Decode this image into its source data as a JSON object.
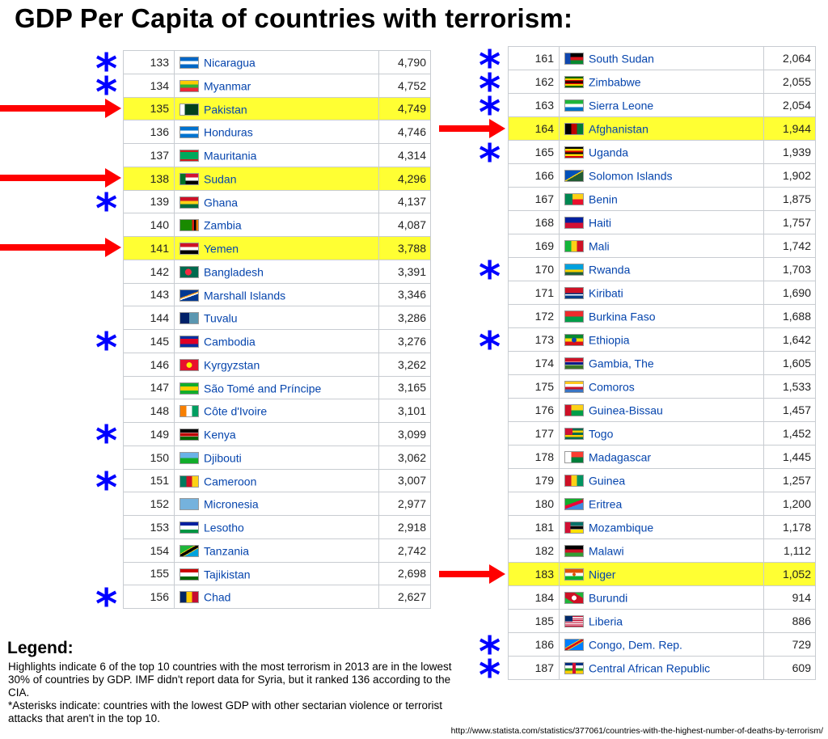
{
  "title": "GDP Per Capita of countries with terrorism:",
  "left_table": [
    {
      "rank": "133",
      "country": "Nicaragua",
      "value": "4,790",
      "flag": "nicaragua-flag-icon",
      "flag_style": "linear-gradient(#0067c6 33%,#fff 33% 67%,#0067c6 67%)",
      "highlight": false,
      "star": true,
      "arrow": false
    },
    {
      "rank": "134",
      "country": "Myanmar",
      "value": "4,752",
      "flag": "myanmar-flag-icon",
      "flag_style": "linear-gradient(#fecb00 33%,#34b233 33% 67%,#ea2839 67%)",
      "highlight": false,
      "star": true,
      "arrow": false
    },
    {
      "rank": "135",
      "country": "Pakistan",
      "value": "4,749",
      "flag": "pakistan-flag-icon",
      "flag_style": "linear-gradient(90deg,#fff 25%,#01411c 25%)",
      "highlight": true,
      "star": false,
      "arrow": true
    },
    {
      "rank": "136",
      "country": "Honduras",
      "value": "4,746",
      "flag": "honduras-flag-icon",
      "flag_style": "linear-gradient(#0073cf 33%,#fff 33% 67%,#0073cf 67%)",
      "highlight": false,
      "star": false,
      "arrow": false
    },
    {
      "rank": "137",
      "country": "Mauritania",
      "value": "4,314",
      "flag": "mauritania-flag-icon",
      "flag_style": "linear-gradient(#d01c1f 15%,#00a95c 15% 85%,#d01c1f 85%)",
      "highlight": false,
      "star": false,
      "arrow": false
    },
    {
      "rank": "138",
      "country": "Sudan",
      "value": "4,296",
      "flag": "sudan-flag-icon",
      "flag_style": "linear-gradient(90deg,#007229 30%,transparent 30%),linear-gradient(#d21034 33%,#fff 33% 67%,#000 67%)",
      "highlight": true,
      "star": false,
      "arrow": true
    },
    {
      "rank": "139",
      "country": "Ghana",
      "value": "4,137",
      "flag": "ghana-flag-icon",
      "flag_style": "linear-gradient(#ce1126 33%,#fcd116 33% 67%,#006b3f 67%)",
      "highlight": false,
      "star": true,
      "arrow": false
    },
    {
      "rank": "140",
      "country": "Zambia",
      "value": "4,087",
      "flag": "zambia-flag-icon",
      "flag_style": "linear-gradient(90deg,#198a00 65%,#de2010 65% 77%,#000 77% 88%,#ef7d00 88%)",
      "highlight": false,
      "star": false,
      "arrow": false
    },
    {
      "rank": "141",
      "country": "Yemen",
      "value": "3,788",
      "flag": "yemen-flag-icon",
      "flag_style": "linear-gradient(#ce1126 33%,#fff 33% 67%,#000 67%)",
      "highlight": true,
      "star": false,
      "arrow": true
    },
    {
      "rank": "142",
      "country": "Bangladesh",
      "value": "3,391",
      "flag": "bangladesh-flag-icon",
      "flag_style": "radial-gradient(circle at 45% 50%,#f42a41 28%,#006a4e 30%)",
      "highlight": false,
      "star": false,
      "arrow": false
    },
    {
      "rank": "143",
      "country": "Marshall Islands",
      "value": "3,346",
      "flag": "marshall-islands-flag-icon",
      "flag_style": "linear-gradient(160deg,#003893 45%,#ff9e1b 45% 52%,#fff 52% 59%,#003893 59%)",
      "highlight": false,
      "star": false,
      "arrow": false
    },
    {
      "rank": "144",
      "country": "Tuvalu",
      "value": "3,286",
      "flag": "tuvalu-flag-icon",
      "flag_style": "linear-gradient(90deg,#012169 50%,#5b97b1 50%)",
      "highlight": false,
      "star": false,
      "arrow": false
    },
    {
      "rank": "145",
      "country": "Cambodia",
      "value": "3,276",
      "flag": "cambodia-flag-icon",
      "flag_style": "linear-gradient(#032ea1 25%,#e00025 25% 75%,#032ea1 75%)",
      "highlight": false,
      "star": true,
      "arrow": false
    },
    {
      "rank": "146",
      "country": "Kyrgyzstan",
      "value": "3,262",
      "flag": "kyrgyzstan-flag-icon",
      "flag_style": "radial-gradient(circle,#ffef00 25%,#e8112d 28%)",
      "highlight": false,
      "star": false,
      "arrow": false
    },
    {
      "rank": "147",
      "country": "São Tomé and Príncipe",
      "value": "3,165",
      "flag": "sao-tome-flag-icon",
      "flag_style": "linear-gradient(#12ad2b 30%,#ffce00 30% 70%,#12ad2b 70%)",
      "highlight": false,
      "star": false,
      "arrow": false
    },
    {
      "rank": "148",
      "country": "Côte d'Ivoire",
      "value": "3,101",
      "flag": "cote-divoire-flag-icon",
      "flag_style": "linear-gradient(90deg,#f77f00 33%,#fff 33% 67%,#009e60 67%)",
      "highlight": false,
      "star": false,
      "arrow": false
    },
    {
      "rank": "149",
      "country": "Kenya",
      "value": "3,099",
      "flag": "kenya-flag-icon",
      "flag_style": "linear-gradient(#000 30%,#fff 30% 35%,#bb0000 35% 65%,#fff 65% 70%,#006600 70%)",
      "highlight": false,
      "star": true,
      "arrow": false
    },
    {
      "rank": "150",
      "country": "Djibouti",
      "value": "3,062",
      "flag": "djibouti-flag-icon",
      "flag_style": "linear-gradient(#6ab2e7 50%,#12ad2b 50%)",
      "highlight": false,
      "star": false,
      "arrow": false
    },
    {
      "rank": "151",
      "country": "Cameroon",
      "value": "3,007",
      "flag": "cameroon-flag-icon",
      "flag_style": "linear-gradient(90deg,#007a5e 33%,#ce1126 33% 67%,#fcd116 67%)",
      "highlight": false,
      "star": true,
      "arrow": false
    },
    {
      "rank": "152",
      "country": "Micronesia",
      "value": "2,977",
      "flag": "micronesia-flag-icon",
      "flag_style": "linear-gradient(#75b2dd,#75b2dd)",
      "highlight": false,
      "star": false,
      "arrow": false
    },
    {
      "rank": "153",
      "country": "Lesotho",
      "value": "2,918",
      "flag": "lesotho-flag-icon",
      "flag_style": "linear-gradient(#00209f 30%,#fff 30% 70%,#009543 70%)",
      "highlight": false,
      "star": false,
      "arrow": false
    },
    {
      "rank": "154",
      "country": "Tanzania",
      "value": "2,742",
      "flag": "tanzania-flag-icon",
      "flag_style": "linear-gradient(150deg,#1eb53a 38%,#fcd116 38% 42%,#000 42% 58%,#fcd116 58% 62%,#00a3dd 62%)",
      "highlight": false,
      "star": false,
      "arrow": false
    },
    {
      "rank": "155",
      "country": "Tajikistan",
      "value": "2,698",
      "flag": "tajikistan-flag-icon",
      "flag_style": "linear-gradient(#cc0000 30%,#fff 30% 70%,#006600 70%)",
      "highlight": false,
      "star": false,
      "arrow": false
    },
    {
      "rank": "156",
      "country": "Chad",
      "value": "2,627",
      "flag": "chad-flag-icon",
      "flag_style": "linear-gradient(90deg,#002664 33%,#fecb00 33% 67%,#c60c30 67%)",
      "highlight": false,
      "star": true,
      "arrow": false
    }
  ],
  "right_table": [
    {
      "rank": "161",
      "country": "South Sudan",
      "value": "2,064",
      "flag": "south-sudan-flag-icon",
      "flag_style": "linear-gradient(90deg,#0f47af 30%,transparent 30%),linear-gradient(#000 33%,#da121a 33% 67%,#078930 67%)",
      "highlight": false,
      "star": true,
      "arrow": false
    },
    {
      "rank": "162",
      "country": "Zimbabwe",
      "value": "2,055",
      "flag": "zimbabwe-flag-icon",
      "flag_style": "linear-gradient(#006400 15%,#ffd200 15% 30%,#d40000 30% 43%,#000 43% 57%,#d40000 57% 70%,#ffd200 70% 85%,#006400 85%)",
      "highlight": false,
      "star": true,
      "arrow": false
    },
    {
      "rank": "163",
      "country": "Sierra Leone",
      "value": "2,054",
      "flag": "sierra-leone-flag-icon",
      "flag_style": "linear-gradient(#1eb53a 33%,#fff 33% 67%,#0072c6 67%)",
      "highlight": false,
      "star": true,
      "arrow": false
    },
    {
      "rank": "164",
      "country": "Afghanistan",
      "value": "1,944",
      "flag": "afghanistan-flag-icon",
      "flag_style": "linear-gradient(90deg,#000 33%,#be0000 33% 67%,#007a36 67%)",
      "highlight": true,
      "star": false,
      "arrow": true
    },
    {
      "rank": "165",
      "country": "Uganda",
      "value": "1,939",
      "flag": "uganda-flag-icon",
      "flag_style": "linear-gradient(#000 17%,#fcdc04 17% 33%,#d90000 33% 50%,#000 50% 67%,#fcdc04 67% 83%,#d90000 83%)",
      "highlight": false,
      "star": true,
      "arrow": false
    },
    {
      "rank": "166",
      "country": "Solomon Islands",
      "value": "1,902",
      "flag": "solomon-islands-flag-icon",
      "flag_style": "linear-gradient(150deg,#0051ba 47%,#fcd116 47% 53%,#215b33 53%)",
      "highlight": false,
      "star": false,
      "arrow": false
    },
    {
      "rank": "167",
      "country": "Benin",
      "value": "1,875",
      "flag": "benin-flag-icon",
      "flag_style": "linear-gradient(90deg,#008751 40%,transparent 40%),linear-gradient(#fcd116 50%,#e8112d 50%)",
      "highlight": false,
      "star": false,
      "arrow": false
    },
    {
      "rank": "168",
      "country": "Haiti",
      "value": "1,757",
      "flag": "haiti-flag-icon",
      "flag_style": "linear-gradient(#00209f 50%,#d21034 50%)",
      "highlight": false,
      "star": false,
      "arrow": false
    },
    {
      "rank": "169",
      "country": "Mali",
      "value": "1,742",
      "flag": "mali-flag-icon",
      "flag_style": "linear-gradient(90deg,#14b53a 33%,#fcd116 33% 67%,#ce1126 67%)",
      "highlight": false,
      "star": false,
      "arrow": false
    },
    {
      "rank": "170",
      "country": "Rwanda",
      "value": "1,703",
      "flag": "rwanda-flag-icon",
      "flag_style": "linear-gradient(#00a1de 50%,#fad201 50% 75%,#20603d 75%)",
      "highlight": false,
      "star": true,
      "arrow": false
    },
    {
      "rank": "171",
      "country": "Kiribati",
      "value": "1,690",
      "flag": "kiribati-flag-icon",
      "flag_style": "linear-gradient(#ce1126 50%,#003f87 50% 62%,#fff 62% 75%,#003f87 75%)",
      "highlight": false,
      "star": false,
      "arrow": false
    },
    {
      "rank": "172",
      "country": "Burkina Faso",
      "value": "1,688",
      "flag": "burkina-faso-flag-icon",
      "flag_style": "linear-gradient(#ef2b2d 50%,#009e49 50%)",
      "highlight": false,
      "star": false,
      "arrow": false
    },
    {
      "rank": "173",
      "country": "Ethiopia",
      "value": "1,642",
      "flag": "ethiopia-flag-icon",
      "flag_style": "radial-gradient(circle,#0f47af 22%,transparent 24%),linear-gradient(#078930 33%,#fcdd09 33% 67%,#da121a 67%)",
      "highlight": false,
      "star": true,
      "arrow": false
    },
    {
      "rank": "174",
      "country": "Gambia, The",
      "value": "1,605",
      "flag": "gambia-flag-icon",
      "flag_style": "linear-gradient(#ce1126 33%,#fff 33% 38%,#0c1c8c 38% 62%,#fff 62% 67%,#3a7728 67%)",
      "highlight": false,
      "star": false,
      "arrow": false
    },
    {
      "rank": "175",
      "country": "Comoros",
      "value": "1,533",
      "flag": "comoros-flag-icon",
      "flag_style": "linear-gradient(#ffc61e 25%,#fff 25% 50%,#ce1126 50% 75%,#3a75c4 75%)",
      "highlight": false,
      "star": false,
      "arrow": false
    },
    {
      "rank": "176",
      "country": "Guinea-Bissau",
      "value": "1,457",
      "flag": "guinea-bissau-flag-icon",
      "flag_style": "linear-gradient(90deg,#ce1126 33%,transparent 33%),linear-gradient(#fcd116 50%,#009e49 50%)",
      "highlight": false,
      "star": false,
      "arrow": false
    },
    {
      "rank": "177",
      "country": "Togo",
      "value": "1,452",
      "flag": "togo-flag-icon",
      "flag_style": "linear-gradient(90deg,#d21034 40%,transparent 40%) 0 0/100% 60% no-repeat,linear-gradient(#006a4e 20%,#ffce00 20% 40%,#006a4e 40% 60%,#ffce00 60% 80%,#006a4e 80%)",
      "highlight": false,
      "star": false,
      "arrow": false
    },
    {
      "rank": "178",
      "country": "Madagascar",
      "value": "1,445",
      "flag": "madagascar-flag-icon",
      "flag_style": "linear-gradient(90deg,#fff 33%,transparent 33%),linear-gradient(#fc3d32 50%,#007e3a 50%)",
      "highlight": false,
      "star": false,
      "arrow": false
    },
    {
      "rank": "179",
      "country": "Guinea",
      "value": "1,257",
      "flag": "guinea-flag-icon",
      "flag_style": "linear-gradient(90deg,#ce1126 33%,#fcd116 33% 67%,#009460 67%)",
      "highlight": false,
      "star": false,
      "arrow": false
    },
    {
      "rank": "180",
      "country": "Eritrea",
      "value": "1,200",
      "flag": "eritrea-flag-icon",
      "flag_style": "linear-gradient(160deg,#12ad2b 40%,#ea0437 40% 60%,#4189dd 60%)",
      "highlight": false,
      "star": false,
      "arrow": false
    },
    {
      "rank": "181",
      "country": "Mozambique",
      "value": "1,178",
      "flag": "mozambique-flag-icon",
      "flag_style": "linear-gradient(90deg,#d21034 30%,transparent 30%),linear-gradient(#007168 30%,#fff 30% 35%,#000 35% 65%,#fff 65% 70%,#fce100 70%)",
      "highlight": false,
      "star": false,
      "arrow": false
    },
    {
      "rank": "182",
      "country": "Malawi",
      "value": "1,112",
      "flag": "malawi-flag-icon",
      "flag_style": "linear-gradient(#000 33%,#ce1126 33% 67%,#339e35 67%)",
      "highlight": false,
      "star": false,
      "arrow": false
    },
    {
      "rank": "183",
      "country": "Niger",
      "value": "1,052",
      "flag": "niger-flag-icon",
      "flag_style": "radial-gradient(circle,#e05206 14%,transparent 16%),linear-gradient(#e05206 33%,#fff 33% 67%,#0db02b 67%)",
      "highlight": true,
      "star": false,
      "arrow": true
    },
    {
      "rank": "184",
      "country": "Burundi",
      "value": "914",
      "flag": "burundi-flag-icon",
      "flag_style": "radial-gradient(circle,#fff 22%,transparent 24%),linear-gradient(33deg,#1eb53a 25%,#ce1126 25% 75%,#1eb53a 75%)",
      "highlight": false,
      "star": false,
      "arrow": false
    },
    {
      "rank": "185",
      "country": "Liberia",
      "value": "886",
      "flag": "liberia-flag-icon",
      "flag_style": "linear-gradient(90deg,#002868 40%,transparent 40%) 0 0/100% 50% no-repeat,repeating-linear-gradient(#bf0a30 0 9%,#fff 9% 18%)",
      "highlight": false,
      "star": false,
      "arrow": false
    },
    {
      "rank": "186",
      "country": "Congo, Dem. Rep.",
      "value": "729",
      "flag": "congo-dr-flag-icon",
      "flag_style": "linear-gradient(150deg,#007fff 40%,#f7d618 40% 44%,#ce1021 44% 56%,#f7d618 56% 60%,#007fff 60%)",
      "highlight": false,
      "star": true,
      "arrow": false
    },
    {
      "rank": "187",
      "country": "Central African Republic",
      "value": "609",
      "flag": "car-flag-icon",
      "flag_style": "linear-gradient(90deg,transparent 42%,#d21034 42% 58%,transparent 58%),linear-gradient(#003082 25%,#fff 25% 50%,#289728 50% 75%,#ffce00 75%)",
      "highlight": false,
      "star": true,
      "arrow": false
    }
  ],
  "legend": {
    "title": "Legend:",
    "line1": "Highlights indicate 6 of the top 10 countries with the most terrorism in 2013 are in the lowest 30% of countries by GDP. IMF didn't report data for Syria, but it ranked 136 according to the CIA.",
    "line2": "*Asterisks indicate: countries with the lowest GDP with other sectarian violence or terrorist attacks that aren't in the top 10."
  },
  "source": "http://www.statista.com/statistics/377061/countries-with-the-highest-number-of-deaths-by-terrorism/",
  "colors": {
    "highlight": "#ffff33",
    "arrow": "#ff0000",
    "star": "#0000ff",
    "link": "#0645ad"
  }
}
